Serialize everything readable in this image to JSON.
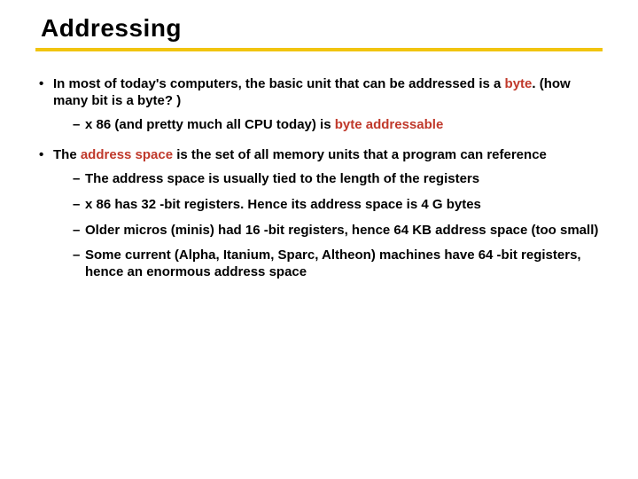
{
  "title": "Addressing",
  "colors": {
    "rule": "#f1c40f",
    "accent": "#c0392b",
    "text": "#000000",
    "background": "#ffffff"
  },
  "bullets": {
    "b1_pre": "In most of today's computers, the basic unit that can be addressed is a ",
    "b1_byte": "byte",
    "b1_post": ". (how many bit is a byte? )",
    "b1_s1_pre": "x 86 (and pretty much all CPU today) is  ",
    "b1_s1_red": "byte addressable",
    "b2_pre": "The ",
    "b2_red": "address space",
    "b2_post": " is the set of all memory units that a program can reference",
    "b2_s1": "The address space is usually tied to the length of the registers",
    "b2_s2": "x 86 has 32 -bit registers. Hence its address space is 4 G bytes",
    "b2_s3": "Older micros (minis) had 16 -bit registers, hence 64 KB address space (too small)",
    "b2_s4": "Some current (Alpha, Itanium, Sparc, Altheon) machines have 64 -bit registers, hence an enormous address space"
  }
}
